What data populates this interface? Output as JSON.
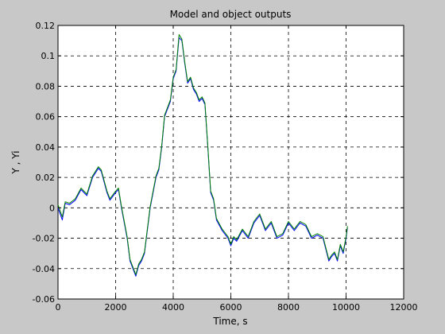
{
  "chart_data": {
    "type": "line",
    "title": "Model and object outputs",
    "xlabel": "Time, s",
    "ylabel": "Y , Yi",
    "xlim": [
      0,
      12000
    ],
    "ylim": [
      -0.06,
      0.12
    ],
    "xticks": [
      0,
      2000,
      4000,
      6000,
      8000,
      10000,
      12000
    ],
    "xtick_labels": [
      "0",
      "2000",
      "4000",
      "6000",
      "8000",
      "10000",
      "12000"
    ],
    "yticks": [
      -0.06,
      -0.04,
      -0.02,
      0,
      0.02,
      0.04,
      0.06,
      0.08,
      0.1,
      0.12
    ],
    "ytick_labels": [
      "-0.06",
      "-0.04",
      "-0.02",
      "0",
      "0.02",
      "0.04",
      "0.06",
      "0.08",
      "0.1",
      "0.12"
    ],
    "grid": true,
    "series": [
      {
        "color": "#0000ff",
        "x": [
          0,
          150,
          250,
          400,
          600,
          800,
          1000,
          1200,
          1400,
          1500,
          1700,
          1800,
          2000,
          2100,
          2200,
          2300,
          2400,
          2500,
          2600,
          2700,
          2800,
          2900,
          3000,
          3100,
          3200,
          3400,
          3500,
          3600,
          3700,
          3800,
          3900,
          4000,
          4100,
          4200,
          4300,
          4400,
          4500,
          4600,
          4700,
          4800,
          4900,
          5000,
          5100,
          5200,
          5300,
          5400,
          5500,
          5700,
          5900,
          6000,
          6100,
          6200,
          6400,
          6600,
          6800,
          7000,
          7200,
          7400,
          7600,
          7800,
          8000,
          8200,
          8400,
          8600,
          8800,
          9000,
          9200,
          9400,
          9500,
          9600,
          9700,
          9800,
          9900,
          10000,
          10050
        ],
        "y": [
          0,
          -0.008,
          0.003,
          0.002,
          0.005,
          0.012,
          0.008,
          0.02,
          0.026,
          0.024,
          0.01,
          0.005,
          0.01,
          0.012,
          0.0,
          -0.01,
          -0.02,
          -0.035,
          -0.04,
          -0.045,
          -0.038,
          -0.035,
          -0.03,
          -0.015,
          0.0,
          0.02,
          0.025,
          0.04,
          0.06,
          0.065,
          0.07,
          0.085,
          0.09,
          0.112,
          0.11,
          0.095,
          0.082,
          0.085,
          0.078,
          0.075,
          0.07,
          0.072,
          0.068,
          0.04,
          0.01,
          0.005,
          -0.008,
          -0.015,
          -0.02,
          -0.025,
          -0.02,
          -0.022,
          -0.015,
          -0.02,
          -0.01,
          -0.005,
          -0.015,
          -0.01,
          -0.02,
          -0.018,
          -0.01,
          -0.015,
          -0.01,
          -0.012,
          -0.02,
          -0.018,
          -0.02,
          -0.035,
          -0.032,
          -0.03,
          -0.035,
          -0.025,
          -0.03,
          -0.02,
          -0.013
        ]
      },
      {
        "color": "#008000",
        "x": [
          0,
          150,
          250,
          400,
          600,
          800,
          1000,
          1200,
          1400,
          1500,
          1700,
          1800,
          2000,
          2100,
          2200,
          2300,
          2400,
          2500,
          2600,
          2700,
          2800,
          2900,
          3000,
          3100,
          3200,
          3400,
          3500,
          3600,
          3700,
          3800,
          3900,
          4000,
          4100,
          4200,
          4300,
          4400,
          4500,
          4600,
          4700,
          4800,
          4900,
          5000,
          5100,
          5200,
          5300,
          5400,
          5500,
          5700,
          5900,
          6000,
          6100,
          6200,
          6400,
          6600,
          6800,
          7000,
          7200,
          7400,
          7600,
          7800,
          8000,
          8200,
          8400,
          8600,
          8800,
          9000,
          9200,
          9400,
          9500,
          9600,
          9700,
          9800,
          9900,
          10000,
          10050
        ],
        "y": [
          0.002,
          -0.006,
          0.004,
          0.003,
          0.006,
          0.013,
          0.009,
          0.021,
          0.027,
          0.025,
          0.011,
          0.006,
          0.011,
          0.013,
          0.001,
          -0.009,
          -0.019,
          -0.034,
          -0.039,
          -0.044,
          -0.037,
          -0.034,
          -0.029,
          -0.014,
          0.001,
          0.021,
          0.026,
          0.041,
          0.061,
          0.066,
          0.071,
          0.086,
          0.091,
          0.114,
          0.111,
          0.096,
          0.083,
          0.086,
          0.079,
          0.076,
          0.071,
          0.073,
          0.069,
          0.041,
          0.011,
          0.006,
          -0.007,
          -0.014,
          -0.019,
          -0.024,
          -0.019,
          -0.021,
          -0.014,
          -0.019,
          -0.009,
          -0.004,
          -0.014,
          -0.009,
          -0.019,
          -0.017,
          -0.009,
          -0.014,
          -0.009,
          -0.011,
          -0.019,
          -0.017,
          -0.019,
          -0.034,
          -0.031,
          -0.029,
          -0.034,
          -0.024,
          -0.029,
          -0.019,
          -0.012
        ]
      }
    ]
  }
}
